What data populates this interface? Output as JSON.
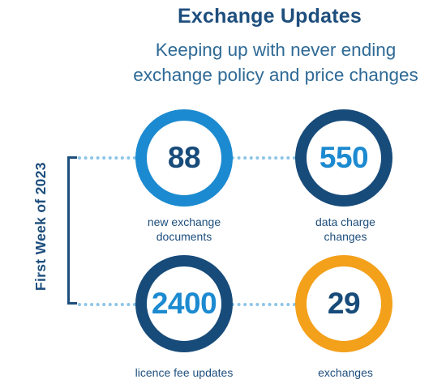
{
  "header": {
    "title": "Exchange Updates",
    "subtitle_line1": "Keeping up with never ending",
    "subtitle_line2": "exchange policy and price changes"
  },
  "period_label": "First Week of 2023",
  "colors": {
    "dark_blue": "#174b7a",
    "light_blue": "#1c8ad0",
    "orange": "#f3a01b",
    "dots": "#8cc4e8"
  },
  "stats": [
    {
      "value": "88",
      "caption_line1": "new exchange",
      "caption_line2": "documents",
      "ring_color": "light_blue",
      "number_color": "dark_blue"
    },
    {
      "value": "550",
      "caption_line1": "data charge",
      "caption_line2": "changes",
      "ring_color": "dark_blue",
      "number_color": "light_blue"
    },
    {
      "value": "2400",
      "caption_line1": "licence fee updates",
      "caption_line2": "",
      "ring_color": "dark_blue",
      "number_color": "light_blue"
    },
    {
      "value": "29",
      "caption_line1": "exchanges",
      "caption_line2": "",
      "ring_color": "orange",
      "number_color": "dark_blue"
    }
  ]
}
